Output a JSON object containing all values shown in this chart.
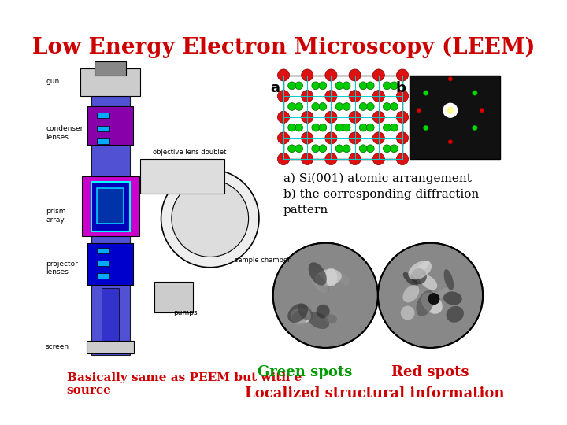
{
  "title": "Low Energy Electron Microscopy (LEEM)",
  "title_color": "#cc0000",
  "title_fontsize": 20,
  "label_a": "a",
  "label_b": "b",
  "bottom_left_text": "Basically same as PEEM but with e\nsource",
  "bottom_left_color": "#cc0000",
  "caption_text": "a) Si(001) atomic arrangement\nb) the corresponding diffraction\npattern",
  "caption_color": "#000000",
  "green_spots_text": "Green spots",
  "green_spots_color": "#009900",
  "red_spots_text": "Red spots",
  "red_spots_color": "#cc0000",
  "localized_text": "Localized structural information",
  "localized_color": "#cc0000",
  "bg_color": "#ffffff"
}
